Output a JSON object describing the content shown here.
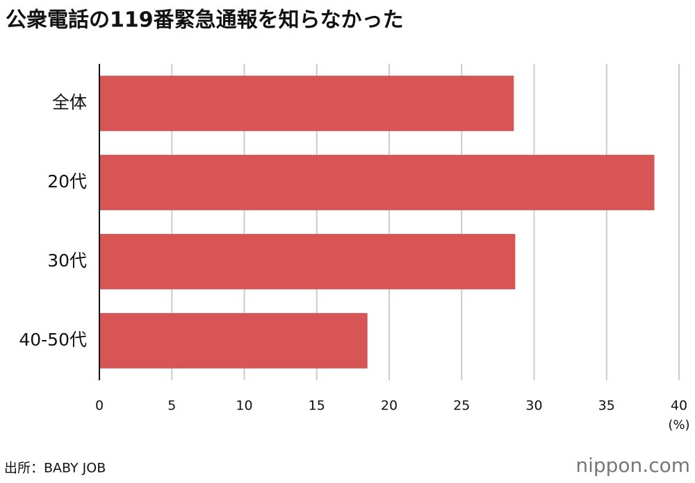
{
  "chart_data": {
    "type": "barh",
    "title": "公衆電話の119番緊急通報を知らなかった",
    "categories": [
      "全体",
      "20代",
      "30代",
      "40-50代"
    ],
    "values": [
      28.6,
      38.3,
      28.7,
      18.5
    ],
    "color": "#d85555",
    "xlim": [
      0,
      40
    ],
    "xticks": [
      0,
      5,
      10,
      15,
      20,
      25,
      30,
      35,
      40
    ],
    "x_unit": "(%)",
    "grid": true,
    "source": "出所：BABY JOB",
    "logo": "nippon.com"
  }
}
